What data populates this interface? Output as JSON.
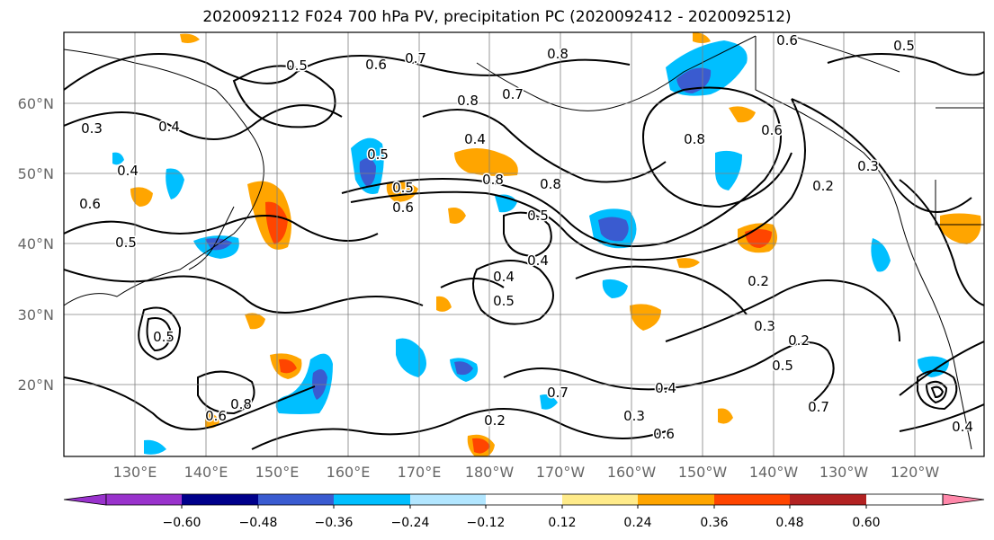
{
  "title": "2020092112 F024 700 hPa PV, precipitation PC (2020092412 - 2020092512)",
  "lat_labels": [
    "60°N",
    "50°N",
    "40°N",
    "30°N",
    "20°N"
  ],
  "lon_labels": [
    "130°E",
    "140°E",
    "150°E",
    "160°E",
    "170°E",
    "180°W",
    "170°W",
    "160°W",
    "150°W",
    "140°W",
    "130°W",
    "120°W"
  ],
  "colorbar": {
    "ticks": [
      "−0.60",
      "−0.48",
      "−0.36",
      "−0.24",
      "−0.12",
      "0.12",
      "0.24",
      "0.36",
      "0.48",
      "0.60"
    ],
    "colors": [
      "#9932cc",
      "#00008b",
      "#3a5bd0",
      "#00bfff",
      "#b2e6ff",
      "#ffffff",
      "#ffeb8a",
      "#ffa500",
      "#ff4500",
      "#b22222",
      "#ff88aa"
    ]
  },
  "contour_labels": [
    "0.3",
    "0.4",
    "0.5",
    "0.6",
    "0.7",
    "0.8",
    "0.6",
    "0.5",
    "0.4",
    "0.8",
    "0.7",
    "0.4",
    "0.5",
    "0.8",
    "0.6",
    "0.3",
    "0.5",
    "0.6",
    "0.8",
    "0.8",
    "0.5",
    "0.4",
    "0.4",
    "0.5",
    "0.6",
    "0.5",
    "0.2",
    "0.2",
    "0.3",
    "0.2",
    "0.5",
    "0.7",
    "0.4",
    "0.3",
    "0.6",
    "0.2",
    "0.7",
    "0.4",
    "0.8",
    "0.6",
    "0.5"
  ],
  "colors": {
    "contour": "#000000",
    "grid": "#808080",
    "coast": "#000000"
  }
}
